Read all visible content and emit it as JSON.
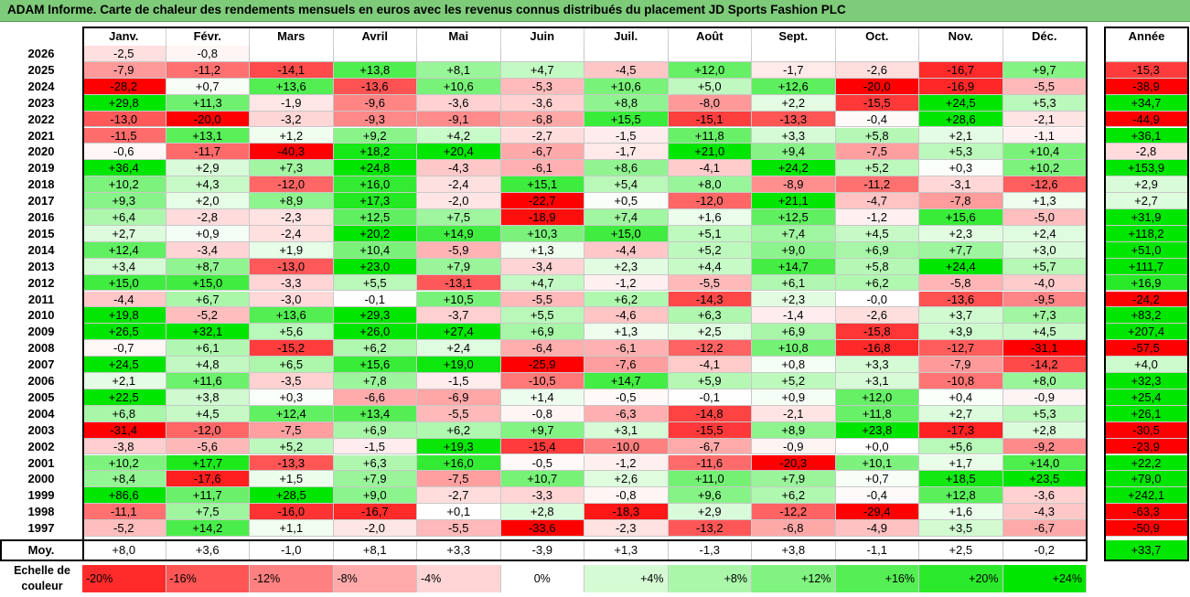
{
  "header": {
    "title": "ADAM Informe. Carte de chaleur des rendements mensuels en euros avec les revenus connus distribués du placement JD Sports Fashion PLC"
  },
  "chart_data": {
    "type": "heatmap",
    "title": "ADAM Informe. Carte de chaleur des rendements mensuels en euros avec les revenus connus distribués du placement JD Sports Fashion PLC",
    "months": [
      "Janv.",
      "Févr.",
      "Mars",
      "Avril",
      "Mai",
      "Juin",
      "Juil.",
      "Août",
      "Sept.",
      "Oct.",
      "Nov.",
      "Déc."
    ],
    "year_header": "Année",
    "rows": [
      {
        "year": "2026",
        "values": [
          "-2,5",
          "-0,8",
          "",
          "",
          "",
          "",
          "",
          "",
          "",
          "",
          "",
          ""
        ],
        "annual": ""
      },
      {
        "year": "2025",
        "values": [
          "-7,9",
          "-11,2",
          "-14,1",
          "+13,8",
          "+8,1",
          "+4,7",
          "-4,5",
          "+12,0",
          "-1,7",
          "-2,6",
          "-16,7",
          "+9,7"
        ],
        "annual": "-15,3"
      },
      {
        "year": "2024",
        "values": [
          "-28,2",
          "+0,7",
          "+13,6",
          "-13,6",
          "+10,6",
          "-5,3",
          "+10,6",
          "+5,0",
          "+12,6",
          "-20,0",
          "-16,9",
          "-5,5"
        ],
        "annual": "-38,9"
      },
      {
        "year": "2023",
        "values": [
          "+29,8",
          "+11,3",
          "-1,9",
          "-9,6",
          "-3,6",
          "-3,6",
          "+8,8",
          "-8,0",
          "+2,2",
          "-15,5",
          "+24,5",
          "+5,3"
        ],
        "annual": "+34,7"
      },
      {
        "year": "2022",
        "values": [
          "-13,0",
          "-20,0",
          "-3,2",
          "-9,3",
          "-9,1",
          "-6,8",
          "+15,5",
          "-15,1",
          "-13,3",
          "-0,4",
          "+28,6",
          "-2,1"
        ],
        "annual": "-44,9"
      },
      {
        "year": "2021",
        "values": [
          "-11,5",
          "+13,1",
          "+1,2",
          "+9,2",
          "+4,2",
          "-2,7",
          "-1,5",
          "+11,8",
          "+3,3",
          "+5,8",
          "+2,1",
          "-1,1"
        ],
        "annual": "+36,1"
      },
      {
        "year": "2020",
        "values": [
          "-0,6",
          "-11,7",
          "-40,3",
          "+18,2",
          "+20,4",
          "-6,7",
          "-1,7",
          "+21,0",
          "+9,4",
          "-7,5",
          "+5,3",
          "+10,4"
        ],
        "annual": "-2,8"
      },
      {
        "year": "2019",
        "values": [
          "+36,4",
          "+2,9",
          "+7,3",
          "+24,8",
          "-4,3",
          "-6,1",
          "+8,6",
          "-4,1",
          "+24,2",
          "+5,2",
          "+0,3",
          "+10,2"
        ],
        "annual": "+153,9"
      },
      {
        "year": "2018",
        "values": [
          "+10,2",
          "+4,3",
          "-12,0",
          "+16,0",
          "-2,4",
          "+15,1",
          "+5,4",
          "+8,0",
          "-8,9",
          "-11,2",
          "-3,1",
          "-12,6"
        ],
        "annual": "+2,9"
      },
      {
        "year": "2017",
        "values": [
          "+9,3",
          "+2,0",
          "+8,9",
          "+17,3",
          "-2,0",
          "-22,7",
          "+0,5",
          "-12,0",
          "+21,1",
          "-4,7",
          "-7,8",
          "+1,3"
        ],
        "annual": "+2,7"
      },
      {
        "year": "2016",
        "values": [
          "+6,4",
          "-2,8",
          "-2,3",
          "+12,5",
          "+7,5",
          "-18,9",
          "+7,4",
          "+1,6",
          "+12,5",
          "-1,2",
          "+15,6",
          "-5,0"
        ],
        "annual": "+31,9"
      },
      {
        "year": "2015",
        "values": [
          "+2,7",
          "+0,9",
          "-2,4",
          "+20,2",
          "+14,9",
          "+10,3",
          "+15,0",
          "+5,1",
          "+7,4",
          "+4,5",
          "+2,3",
          "+2,4"
        ],
        "annual": "+118,2"
      },
      {
        "year": "2014",
        "values": [
          "+12,4",
          "-3,4",
          "+1,9",
          "+10,4",
          "-5,9",
          "+1,3",
          "-4,4",
          "+5,2",
          "+9,0",
          "+6,9",
          "+7,7",
          "+3,0"
        ],
        "annual": "+51,0"
      },
      {
        "year": "2013",
        "values": [
          "+3,4",
          "+8,7",
          "-13,0",
          "+23,0",
          "+7,9",
          "-3,4",
          "+2,3",
          "+4,4",
          "+14,7",
          "+5,8",
          "+24,4",
          "+5,7"
        ],
        "annual": "+111,7"
      },
      {
        "year": "2012",
        "values": [
          "+15,0",
          "+15,0",
          "-3,3",
          "+5,5",
          "-13,1",
          "+4,7",
          "-1,2",
          "-5,5",
          "+6,1",
          "+6,2",
          "-5,8",
          "-4,0"
        ],
        "annual": "+16,9"
      },
      {
        "year": "2011",
        "values": [
          "-4,4",
          "+6,7",
          "-3,0",
          "-0,1",
          "+10,5",
          "-5,5",
          "+6,2",
          "-14,3",
          "+2,3",
          "-0,0",
          "-13,6",
          "-9,5"
        ],
        "annual": "-24,2"
      },
      {
        "year": "2010",
        "values": [
          "+19,8",
          "-5,2",
          "+13,6",
          "+29,3",
          "-3,7",
          "+5,5",
          "-4,6",
          "+6,3",
          "-1,4",
          "-2,6",
          "+3,7",
          "+7,3"
        ],
        "annual": "+83,2"
      },
      {
        "year": "2009",
        "values": [
          "+26,5",
          "+32,1",
          "+5,6",
          "+26,0",
          "+27,4",
          "+6,9",
          "+1,3",
          "+2,5",
          "+6,9",
          "-15,8",
          "+3,9",
          "+4,5"
        ],
        "annual": "+207,4"
      },
      {
        "year": "2008",
        "values": [
          "-0,7",
          "+6,1",
          "-15,2",
          "+6,2",
          "+2,4",
          "-6,4",
          "-6,1",
          "-12,2",
          "+10,8",
          "-16,8",
          "-12,7",
          "-31,1"
        ],
        "annual": "-57,5"
      },
      {
        "year": "2007",
        "values": [
          "+24,5",
          "+4,8",
          "+6,5",
          "+15,6",
          "+19,0",
          "-25,9",
          "-7,6",
          "-4,1",
          "+0,8",
          "+3,3",
          "-7,9",
          "-14,2"
        ],
        "annual": "+4,0"
      },
      {
        "year": "2006",
        "values": [
          "+2,1",
          "+11,6",
          "-3,5",
          "+7,8",
          "-1,5",
          "-10,5",
          "+14,7",
          "+5,9",
          "+5,2",
          "+3,1",
          "-10,8",
          "+8,0"
        ],
        "annual": "+32,3"
      },
      {
        "year": "2005",
        "values": [
          "+22,5",
          "+3,8",
          "+0,3",
          "-6,6",
          "-6,9",
          "+1,4",
          "-0,5",
          "-0,1",
          "+0,9",
          "+12,0",
          "+0,4",
          "-0,9"
        ],
        "annual": "+25,4"
      },
      {
        "year": "2004",
        "values": [
          "+6,8",
          "+4,5",
          "+12,4",
          "+13,4",
          "-5,5",
          "-0,8",
          "-6,3",
          "-14,8",
          "-2,1",
          "+11,8",
          "+2,7",
          "+5,3"
        ],
        "annual": "+26,1"
      },
      {
        "year": "2003",
        "values": [
          "-31,4",
          "-12,0",
          "-7,5",
          "+6,9",
          "+6,2",
          "+9,7",
          "+3,1",
          "-15,5",
          "+8,9",
          "+23,8",
          "-17,3",
          "+2,8"
        ],
        "annual": "-30,5"
      },
      {
        "year": "2002",
        "values": [
          "-3,8",
          "-5,6",
          "+5,2",
          "-1,5",
          "+19,3",
          "-15,4",
          "-10,0",
          "-6,7",
          "-0,9",
          "+0,0",
          "+5,6",
          "-9,2"
        ],
        "annual": "-23,9"
      },
      {
        "year": "2001",
        "values": [
          "+10,2",
          "+17,7",
          "-13,3",
          "+6,3",
          "+16,0",
          "-0,5",
          "-1,2",
          "-11,6",
          "-20,3",
          "+10,1",
          "+1,7",
          "+14,0"
        ],
        "annual": "+22,2"
      },
      {
        "year": "2000",
        "values": [
          "+8,4",
          "-17,6",
          "+1,5",
          "+7,9",
          "-7,5",
          "+10,7",
          "+2,6",
          "+11,0",
          "+7,9",
          "+0,7",
          "+18,5",
          "+23,5"
        ],
        "annual": "+79,0"
      },
      {
        "year": "1999",
        "values": [
          "+86,6",
          "+11,7",
          "+28,5",
          "+9,0",
          "-2,7",
          "-3,3",
          "-0,8",
          "+9,6",
          "+6,2",
          "-0,4",
          "+12,8",
          "-3,6"
        ],
        "annual": "+242,1"
      },
      {
        "year": "1998",
        "values": [
          "-11,1",
          "+7,5",
          "-16,0",
          "-16,7",
          "+0,1",
          "+2,8",
          "-18,3",
          "+2,9",
          "-12,2",
          "-29,4",
          "+1,6",
          "-4,3"
        ],
        "annual": "-63,3"
      },
      {
        "year": "1997",
        "values": [
          "-5,2",
          "+14,2",
          "+1,1",
          "-2,0",
          "-5,5",
          "-33,6",
          "-2,3",
          "-13,2",
          "-6,8",
          "-4,9",
          "+3,5",
          "-6,7"
        ],
        "annual": "-50,9"
      }
    ],
    "average": {
      "label": "Moy.",
      "values": [
        "+8,0",
        "+3,6",
        "-1,0",
        "+8,1",
        "+3,3",
        "-3,9",
        "+1,3",
        "-1,3",
        "+3,8",
        "-1,1",
        "+2,5",
        "-0,2"
      ],
      "annual": "+33,7"
    },
    "legend": {
      "label": "Echelle de couleur",
      "steps": [
        {
          "label": "-20%",
          "value": -20
        },
        {
          "label": "-16%",
          "value": -16
        },
        {
          "label": "-12%",
          "value": -12
        },
        {
          "label": "-8%",
          "value": -8
        },
        {
          "label": "-4%",
          "value": -4
        },
        {
          "label": "0%",
          "value": 0
        },
        {
          "label": "+4%",
          "value": 4
        },
        {
          "label": "+8%",
          "value": 8
        },
        {
          "label": "+12%",
          "value": 12
        },
        {
          "label": "+16%",
          "value": 16
        },
        {
          "label": "+20%",
          "value": 20
        },
        {
          "label": "+24%",
          "value": 24
        }
      ]
    },
    "colors": {
      "negative": "#ff0000",
      "neutral": "#ffffff",
      "positive": "#00e600"
    }
  }
}
